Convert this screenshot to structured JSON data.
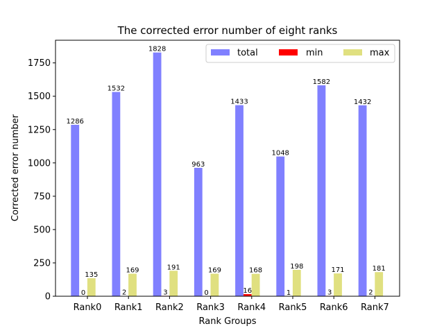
{
  "chart_data": {
    "type": "bar",
    "title": "The corrected error number of eight ranks",
    "xlabel": "Rank Groups",
    "ylabel": "Corrected error number",
    "categories": [
      "Rank0",
      "Rank1",
      "Rank2",
      "Rank3",
      "Rank4",
      "Rank5",
      "Rank6",
      "Rank7"
    ],
    "series": [
      {
        "name": "total",
        "color": "#8080ff",
        "values": [
          1286,
          1532,
          1828,
          963,
          1433,
          1048,
          1582,
          1432
        ]
      },
      {
        "name": "min",
        "color": "#ff0000",
        "values": [
          0,
          2,
          3,
          0,
          16,
          1,
          3,
          2
        ]
      },
      {
        "name": "max",
        "color": "#e0e080",
        "values": [
          135,
          169,
          191,
          169,
          168,
          198,
          171,
          181
        ]
      }
    ],
    "ylim": [
      0,
      1920
    ],
    "yticks": [
      0,
      250,
      500,
      750,
      1000,
      1250,
      1500,
      1750
    ],
    "legend_position": "top-right",
    "grid": false
  }
}
